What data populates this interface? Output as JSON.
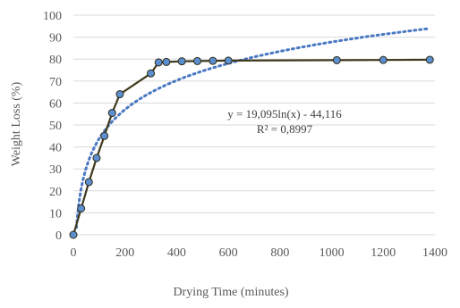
{
  "chart_data": {
    "type": "scatter",
    "xlabel": "Drying Time (minutes)",
    "ylabel": "Weight Loss (%)",
    "xlim": [
      0,
      1400
    ],
    "ylim": [
      0,
      100
    ],
    "x_ticks": [
      0,
      200,
      400,
      600,
      800,
      1000,
      1200,
      1400
    ],
    "y_ticks": [
      0,
      10,
      20,
      30,
      40,
      50,
      60,
      70,
      80,
      90,
      100
    ],
    "grid": "horizontal",
    "legend": "none",
    "series": [
      {
        "x": [
          0,
          30,
          60,
          90,
          120,
          150,
          180,
          300,
          330,
          360,
          420,
          480,
          540,
          600,
          1020,
          1200,
          1380
        ],
        "y": [
          0,
          12,
          24,
          35,
          45,
          55.5,
          64,
          73.5,
          78.5,
          78.7,
          79,
          79.1,
          79.2,
          79.3,
          79.5,
          79.6,
          79.7
        ],
        "color": "#5b8fd0",
        "line_color": "#3f3a1e",
        "marker": "circle"
      }
    ],
    "trendline": {
      "type": "logarithmic",
      "a": 19.095,
      "b": -44.116,
      "color": "#4a78c2",
      "style": "dotted",
      "x_range": [
        12,
        1380
      ],
      "equation_label": "y = 19,095ln(x) - 44,116",
      "r2_label": "R² = 0,8997"
    }
  }
}
